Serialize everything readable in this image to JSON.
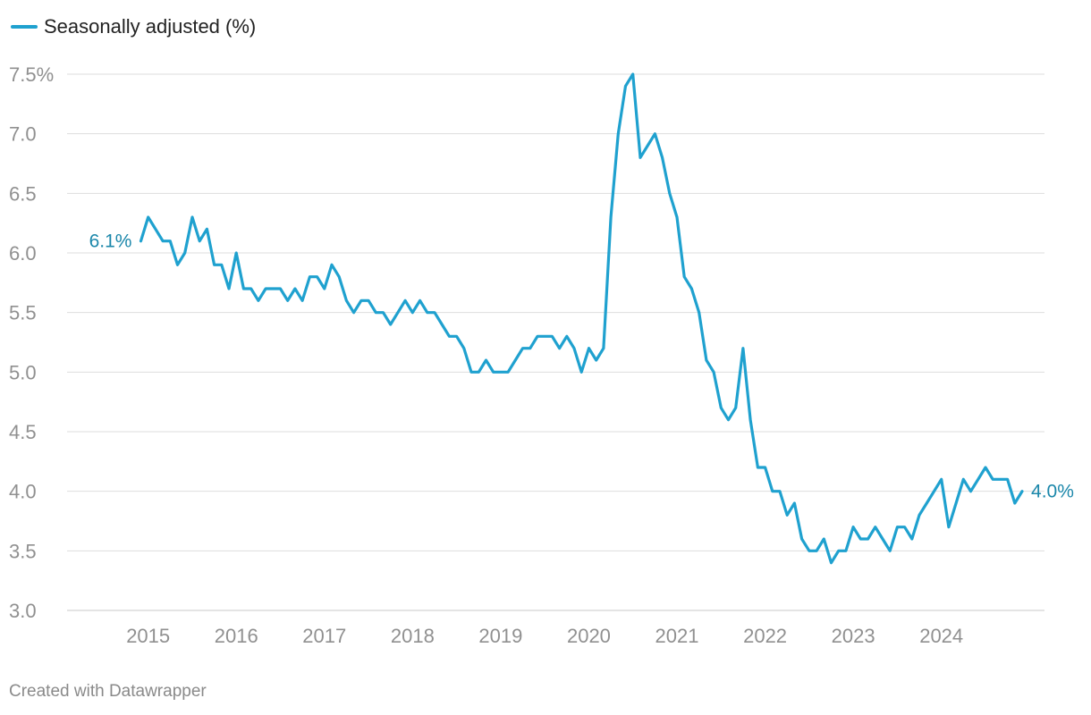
{
  "chart_data": {
    "type": "line",
    "title": "",
    "xlabel": "",
    "ylabel": "",
    "legend": "top-left",
    "grid": true,
    "ylim": [
      3.0,
      7.5
    ],
    "xlim": [
      2014.08,
      2025.17
    ],
    "y_ticks": [
      {
        "value": 3.0,
        "label": "3.0"
      },
      {
        "value": 3.5,
        "label": "3.5"
      },
      {
        "value": 4.0,
        "label": "4.0"
      },
      {
        "value": 4.5,
        "label": "4.5"
      },
      {
        "value": 5.0,
        "label": "5.0"
      },
      {
        "value": 5.5,
        "label": "5.5"
      },
      {
        "value": 6.0,
        "label": "6.0"
      },
      {
        "value": 6.5,
        "label": "6.5"
      },
      {
        "value": 7.0,
        "label": "7.0"
      },
      {
        "value": 7.5,
        "label": "7.5%"
      }
    ],
    "x_ticks": [
      {
        "value": 2015,
        "label": "2015"
      },
      {
        "value": 2016,
        "label": "2016"
      },
      {
        "value": 2017,
        "label": "2017"
      },
      {
        "value": 2018,
        "label": "2018"
      },
      {
        "value": 2019,
        "label": "2019"
      },
      {
        "value": 2020,
        "label": "2020"
      },
      {
        "value": 2021,
        "label": "2021"
      },
      {
        "value": 2022,
        "label": "2022"
      },
      {
        "value": 2023,
        "label": "2023"
      },
      {
        "value": 2024,
        "label": "2024"
      }
    ],
    "series": [
      {
        "name": "Seasonally adjusted (%)",
        "color": "#1fa1cf",
        "x_start": "2014-12",
        "values": [
          6.1,
          6.3,
          6.2,
          6.1,
          6.1,
          5.9,
          6.0,
          6.3,
          6.1,
          6.2,
          5.9,
          5.9,
          5.7,
          6.0,
          5.7,
          5.7,
          5.6,
          5.7,
          5.7,
          5.7,
          5.6,
          5.7,
          5.6,
          5.8,
          5.8,
          5.7,
          5.9,
          5.8,
          5.6,
          5.5,
          5.6,
          5.6,
          5.5,
          5.5,
          5.4,
          5.5,
          5.6,
          5.5,
          5.6,
          5.5,
          5.5,
          5.4,
          5.3,
          5.3,
          5.2,
          5.0,
          5.0,
          5.1,
          5.0,
          5.0,
          5.0,
          5.1,
          5.2,
          5.2,
          5.3,
          5.3,
          5.3,
          5.2,
          5.3,
          5.2,
          5.0,
          5.2,
          5.1,
          5.2,
          6.3,
          7.0,
          7.4,
          7.5,
          6.8,
          6.9,
          7.0,
          6.8,
          6.5,
          6.3,
          5.8,
          5.7,
          5.5,
          5.1,
          5.0,
          4.7,
          4.6,
          4.7,
          5.2,
          4.6,
          4.2,
          4.2,
          4.0,
          4.0,
          3.8,
          3.9,
          3.6,
          3.5,
          3.5,
          3.6,
          3.4,
          3.5,
          3.5,
          3.7,
          3.6,
          3.6,
          3.7,
          3.6,
          3.5,
          3.7,
          3.7,
          3.6,
          3.8,
          3.9,
          4.0,
          4.1,
          3.7,
          3.9,
          4.1,
          4.0,
          4.1,
          4.2,
          4.1,
          4.1,
          4.1,
          3.9,
          4.0
        ]
      }
    ],
    "annotations": [
      {
        "text": "6.1%",
        "x": "2014-12",
        "y": 6.1,
        "position": "left"
      },
      {
        "text": "4.0%",
        "x": "2024-12",
        "y": 4.0,
        "position": "right"
      }
    ],
    "colors": {
      "grid": "#dddddd",
      "axis_text": "#909090",
      "annotation": "#1b87aa"
    }
  },
  "legend": {
    "label": "Seasonally adjusted (%)"
  },
  "footer": {
    "credit": "Created with Datawrapper"
  }
}
